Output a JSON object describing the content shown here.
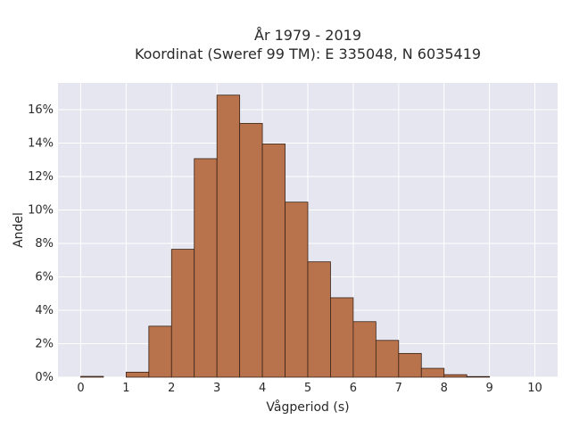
{
  "chart_data": {
    "type": "bar",
    "title_line1": "År 1979 - 2019",
    "title_line2": "Koordinat (Sweref 99 TM): E 335048, N 6035419",
    "xlabel": "Vågperiod (s)",
    "ylabel": "Andel",
    "xlim": [
      -0.5,
      10.5
    ],
    "ylim": [
      0,
      0.176
    ],
    "bin_width": 0.5,
    "bins": [
      {
        "x0": 0.0,
        "value": 0.0005
      },
      {
        "x0": 0.5,
        "value": 0.0
      },
      {
        "x0": 1.0,
        "value": 0.003
      },
      {
        "x0": 1.5,
        "value": 0.0305
      },
      {
        "x0": 2.0,
        "value": 0.0765
      },
      {
        "x0": 2.5,
        "value": 0.1307
      },
      {
        "x0": 3.0,
        "value": 0.1687
      },
      {
        "x0": 3.5,
        "value": 0.1518
      },
      {
        "x0": 4.0,
        "value": 0.1395
      },
      {
        "x0": 4.5,
        "value": 0.1047
      },
      {
        "x0": 5.0,
        "value": 0.069
      },
      {
        "x0": 5.5,
        "value": 0.0475
      },
      {
        "x0": 6.0,
        "value": 0.0332
      },
      {
        "x0": 6.5,
        "value": 0.022
      },
      {
        "x0": 7.0,
        "value": 0.0142
      },
      {
        "x0": 7.5,
        "value": 0.0053
      },
      {
        "x0": 8.0,
        "value": 0.0015
      },
      {
        "x0": 8.5,
        "value": 0.0004
      }
    ],
    "x_ticks": [
      {
        "value": 0,
        "label": "0"
      },
      {
        "value": 1,
        "label": "1"
      },
      {
        "value": 2,
        "label": "2"
      },
      {
        "value": 3,
        "label": "3"
      },
      {
        "value": 4,
        "label": "4"
      },
      {
        "value": 5,
        "label": "5"
      },
      {
        "value": 6,
        "label": "6"
      },
      {
        "value": 7,
        "label": "7"
      },
      {
        "value": 8,
        "label": "8"
      },
      {
        "value": 9,
        "label": "9"
      },
      {
        "value": 10,
        "label": "10"
      }
    ],
    "y_ticks": [
      {
        "value": 0,
        "label": "0%"
      },
      {
        "value": 0.02,
        "label": "2%"
      },
      {
        "value": 0.04,
        "label": "4%"
      },
      {
        "value": 0.06,
        "label": "6%"
      },
      {
        "value": 0.08,
        "label": "8%"
      },
      {
        "value": 0.1,
        "label": "10%"
      },
      {
        "value": 0.12,
        "label": "12%"
      },
      {
        "value": 0.14,
        "label": "14%"
      },
      {
        "value": 0.16,
        "label": "16%"
      }
    ],
    "grid": true,
    "colors": {
      "bar_fill": "#b8724c",
      "bar_edge": "#3a2418",
      "plot_bg": "#e5e6ef",
      "grid": "#ffffff"
    }
  }
}
